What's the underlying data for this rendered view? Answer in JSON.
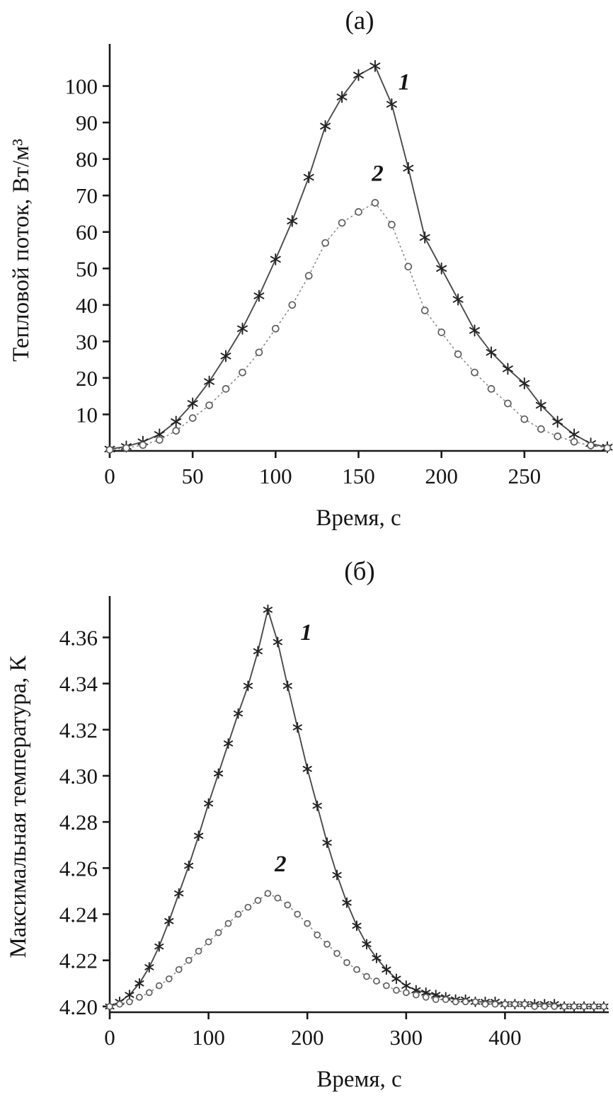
{
  "figure": {
    "background": "#ffffff"
  },
  "chart_data": [
    {
      "type": "line",
      "title": "(а)",
      "xlabel": "Время, с",
      "ylabel": "Тепловой поток, Вт/м³",
      "xlim": [
        0,
        300
      ],
      "ylim": [
        0,
        110
      ],
      "grid": false,
      "legend_position": "none",
      "xticks": [
        {
          "v": 0,
          "t": "0"
        },
        {
          "v": 50,
          "t": "50"
        },
        {
          "v": 100,
          "t": "100"
        },
        {
          "v": 150,
          "t": "150"
        },
        {
          "v": 200,
          "t": "200"
        },
        {
          "v": 250,
          "t": "250"
        }
      ],
      "yticks": [
        {
          "v": 10,
          "t": "10"
        },
        {
          "v": 20,
          "t": "20"
        },
        {
          "v": 30,
          "t": "30"
        },
        {
          "v": 40,
          "t": "40"
        },
        {
          "v": 50,
          "t": "50"
        },
        {
          "v": 60,
          "t": "60"
        },
        {
          "v": 70,
          "t": "70"
        },
        {
          "v": 80,
          "t": "80"
        },
        {
          "v": 90,
          "t": "90"
        },
        {
          "v": 100,
          "t": "100"
        }
      ],
      "series": [
        {
          "name": "1",
          "marker": "asterisk",
          "line": "solid",
          "color": "#4a4a4a",
          "marker_color": "#222222",
          "x": [
            0,
            10,
            20,
            30,
            40,
            50,
            60,
            70,
            80,
            90,
            100,
            110,
            120,
            130,
            140,
            150,
            160,
            170,
            180,
            190,
            200,
            210,
            220,
            230,
            240,
            250,
            260,
            270,
            280,
            290,
            300
          ],
          "values": [
            0.5,
            1.2,
            2.5,
            4.5,
            8,
            13,
            19,
            26,
            33.5,
            42.5,
            52.5,
            63,
            75,
            89,
            97,
            103,
            105.5,
            95,
            77.5,
            58.5,
            50,
            41.5,
            33,
            27,
            22.5,
            18.5,
            12.5,
            8,
            4.5,
            2,
            1
          ],
          "label": {
            "text": "1",
            "x": 174,
            "y": 99
          }
        },
        {
          "name": "2",
          "marker": "circle",
          "line": "dotted",
          "color": "#8a8a8a",
          "marker_color": "#5f5f5f",
          "x": [
            0,
            10,
            20,
            30,
            40,
            50,
            60,
            70,
            80,
            90,
            100,
            110,
            120,
            130,
            140,
            150,
            160,
            170,
            180,
            190,
            200,
            210,
            220,
            230,
            240,
            250,
            260,
            270,
            280,
            290,
            300
          ],
          "values": [
            0.3,
            0.8,
            1.6,
            3,
            5.5,
            9,
            12.5,
            17,
            21.5,
            27,
            33.5,
            40,
            48,
            57,
            62.5,
            65.5,
            68,
            62,
            50.5,
            38.5,
            32.5,
            26.5,
            21.5,
            17,
            13,
            8.7,
            6,
            4,
            2.5,
            1.5,
            0.8
          ],
          "label": {
            "text": "2",
            "x": 158,
            "y": 74
          }
        }
      ]
    },
    {
      "type": "line",
      "title": "(б)",
      "xlabel": "Время, с",
      "ylabel": "Максимальная температура, К",
      "xlim": [
        0,
        505
      ],
      "ylim": [
        4.1975,
        4.3755
      ],
      "grid": false,
      "legend_position": "none",
      "xticks": [
        {
          "v": 0,
          "t": "0"
        },
        {
          "v": 100,
          "t": "100"
        },
        {
          "v": 200,
          "t": "200"
        },
        {
          "v": 300,
          "t": "300"
        },
        {
          "v": 400,
          "t": "400"
        }
      ],
      "yticks": [
        {
          "v": 4.2,
          "t": "4.20"
        },
        {
          "v": 4.22,
          "t": "4.22"
        },
        {
          "v": 4.24,
          "t": "4.24"
        },
        {
          "v": 4.26,
          "t": "4.26"
        },
        {
          "v": 4.28,
          "t": "4.28"
        },
        {
          "v": 4.3,
          "t": "4.30"
        },
        {
          "v": 4.32,
          "t": "4.32"
        },
        {
          "v": 4.34,
          "t": "4.34"
        },
        {
          "v": 4.36,
          "t": "4.36"
        }
      ],
      "series": [
        {
          "name": "1",
          "marker": "asterisk",
          "line": "solid",
          "color": "#4a4a4a",
          "marker_color": "#222222",
          "x": [
            0,
            10,
            20,
            30,
            40,
            50,
            60,
            70,
            80,
            90,
            100,
            110,
            120,
            130,
            140,
            150,
            160,
            170,
            180,
            190,
            200,
            210,
            220,
            230,
            240,
            250,
            260,
            270,
            280,
            290,
            300,
            310,
            320,
            330,
            340,
            350,
            360,
            370,
            380,
            390,
            400,
            410,
            420,
            430,
            440,
            450,
            460,
            470,
            480,
            490,
            500
          ],
          "values": [
            4.2,
            4.202,
            4.205,
            4.21,
            4.217,
            4.226,
            4.237,
            4.249,
            4.261,
            4.274,
            4.288,
            4.301,
            4.314,
            4.327,
            4.339,
            4.354,
            4.372,
            4.358,
            4.339,
            4.321,
            4.303,
            4.287,
            4.271,
            4.257,
            4.245,
            4.235,
            4.227,
            4.221,
            4.216,
            4.212,
            4.209,
            4.207,
            4.206,
            4.205,
            4.204,
            4.203,
            4.203,
            4.202,
            4.202,
            4.202,
            4.201,
            4.201,
            4.201,
            4.201,
            4.201,
            4.201,
            4.2,
            4.2,
            4.2,
            4.2,
            4.2
          ],
          "label": {
            "text": "1",
            "x": 193,
            "y": 4.359
          }
        },
        {
          "name": "2",
          "marker": "circle",
          "line": "dotted",
          "color": "#8a8a8a",
          "marker_color": "#5f5f5f",
          "x": [
            0,
            10,
            20,
            30,
            40,
            50,
            60,
            70,
            80,
            90,
            100,
            110,
            120,
            130,
            140,
            150,
            160,
            170,
            180,
            190,
            200,
            210,
            220,
            230,
            240,
            250,
            260,
            270,
            280,
            290,
            300,
            310,
            320,
            330,
            340,
            350,
            360,
            370,
            380,
            390,
            400,
            410,
            420,
            430,
            440,
            450,
            460,
            470,
            480,
            490,
            500
          ],
          "values": [
            4.2,
            4.201,
            4.202,
            4.204,
            4.206,
            4.209,
            4.212,
            4.216,
            4.22,
            4.224,
            4.228,
            4.232,
            4.236,
            4.24,
            4.243,
            4.246,
            4.249,
            4.247,
            4.244,
            4.24,
            4.236,
            4.231,
            4.227,
            4.223,
            4.219,
            4.216,
            4.213,
            4.211,
            4.209,
            4.207,
            4.206,
            4.205,
            4.204,
            4.203,
            4.203,
            4.202,
            4.202,
            4.202,
            4.201,
            4.201,
            4.201,
            4.201,
            4.201,
            4.2,
            4.2,
            4.2,
            4.2,
            4.2,
            4.2,
            4.2,
            4.2
          ],
          "label": {
            "text": "2",
            "x": 167,
            "y": 4.2585
          }
        }
      ]
    }
  ]
}
